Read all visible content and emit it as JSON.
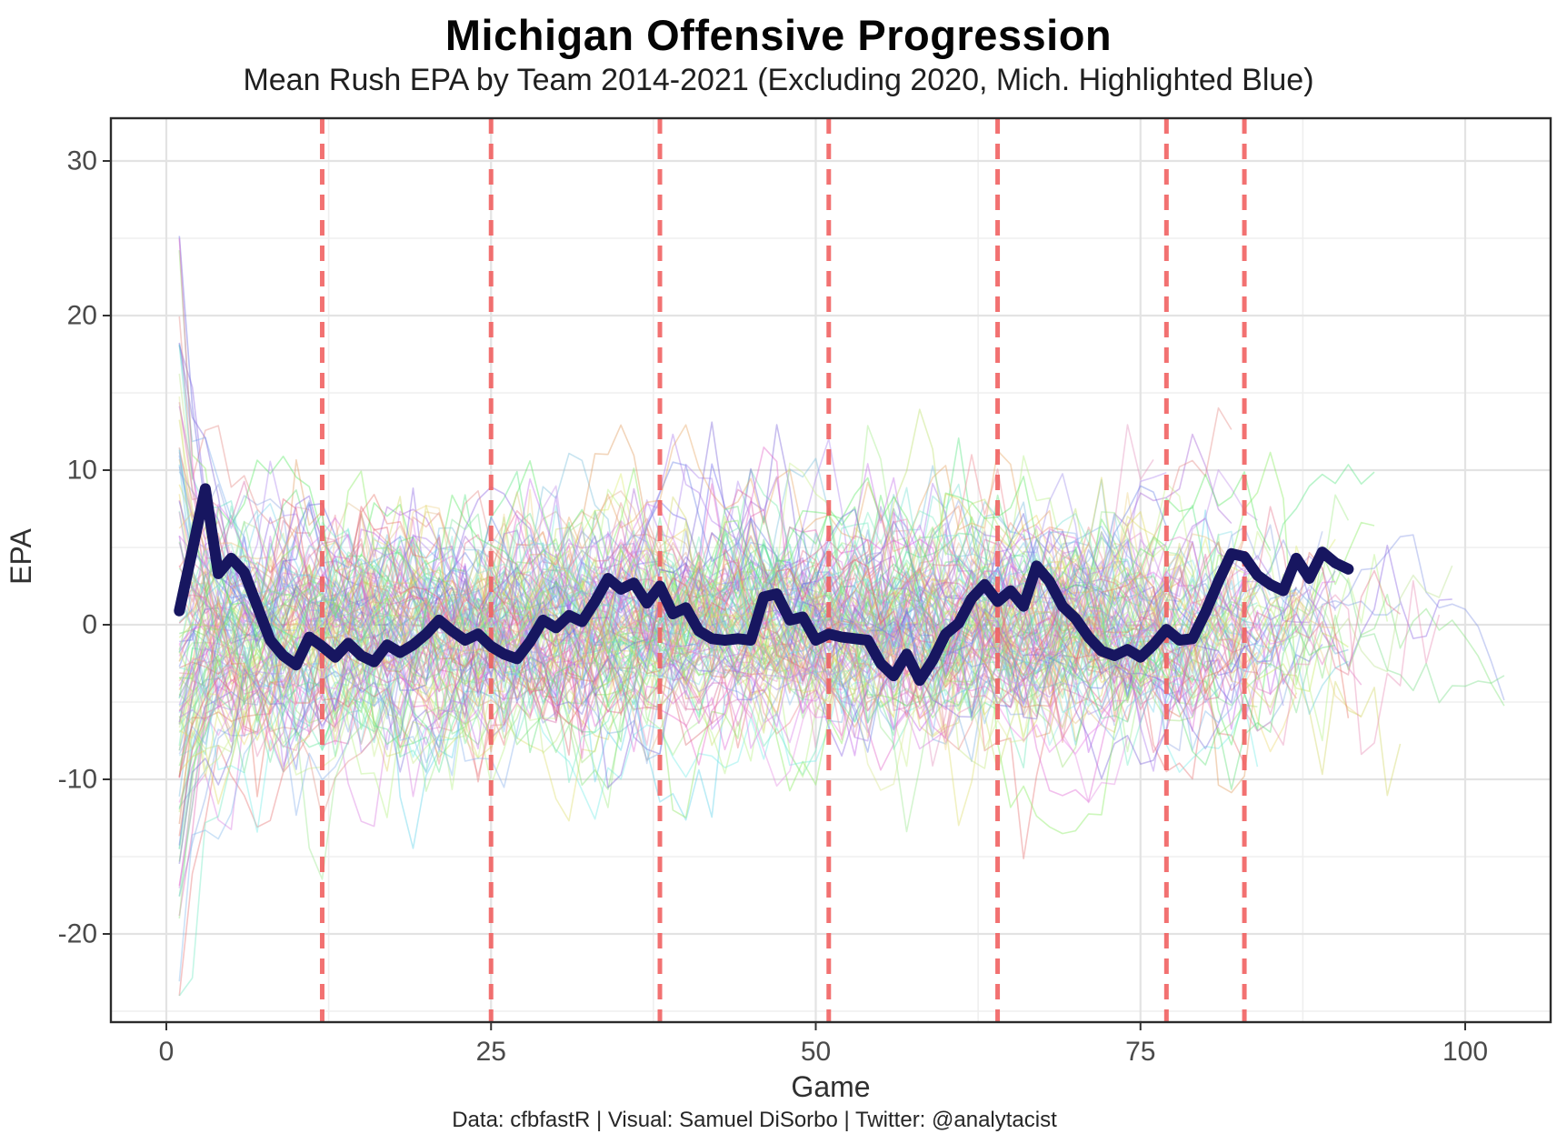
{
  "chart_data": {
    "type": "line",
    "title": "Michigan Offensive Progression",
    "subtitle": "Mean Rush EPA by Team 2014-2021 (Excluding 2020, Mich. Highlighted Blue)",
    "caption": "Data: cfbfastR | Visual: Samuel DiSorbo | Twitter: @analytacist",
    "xlabel": "Game",
    "ylabel": "EPA",
    "x_ticks": [
      0,
      25,
      50,
      75,
      100
    ],
    "y_ticks": [
      30,
      20,
      10,
      0,
      -10,
      -20
    ],
    "x_minor_gridlines": [
      12.5,
      37.5,
      62.5,
      87.5
    ],
    "y_minor_gridlines": [
      25,
      15,
      5,
      -5,
      -15,
      -25
    ],
    "xlim": [
      -4.2,
      106.5
    ],
    "ylim": [
      -25.9,
      33.1
    ],
    "grid": {
      "major": true,
      "minor": true
    },
    "legend_position": "none",
    "season_boundary_games": [
      12,
      25,
      38,
      51,
      64,
      77,
      83
    ],
    "highlight_team": "Michigan",
    "michigan_series": {
      "name": "Michigan",
      "x_start_game": 1,
      "mean_rush_epa_by_game": [
        0.9,
        4.8,
        8.8,
        3.3,
        4.3,
        3.4,
        1.2,
        -1.0,
        -2.0,
        -2.6,
        -0.8,
        -1.4,
        -2.1,
        -1.2,
        -2.0,
        -2.4,
        -1.3,
        -1.8,
        -1.3,
        -0.6,
        0.3,
        -0.4,
        -1.0,
        -0.6,
        -1.4,
        -1.9,
        -2.2,
        -1.1,
        0.3,
        -0.2,
        0.6,
        0.2,
        1.5,
        3.0,
        2.3,
        2.7,
        1.4,
        2.5,
        0.7,
        1.1,
        -0.4,
        -0.9,
        -1.0,
        -0.9,
        -1.0,
        1.8,
        2.0,
        0.3,
        0.5,
        -1.0,
        -0.6,
        -0.8,
        -0.9,
        -1.0,
        -2.5,
        -3.3,
        -1.9,
        -3.6,
        -2.3,
        -0.6,
        0.1,
        1.7,
        2.6,
        1.5,
        2.2,
        1.2,
        3.8,
        2.8,
        1.2,
        0.4,
        -0.8,
        -1.7,
        -2.0,
        -1.6,
        -2.1,
        -1.3,
        -0.3,
        -1.0,
        -0.9,
        0.8,
        2.8,
        4.6,
        4.4,
        3.2,
        2.6,
        2.2,
        4.3,
        3.0,
        4.7,
        4.0,
        3.6
      ]
    },
    "background_teams": {
      "description": "other FBS team lines 2014-2021 (excl. 2020), de-emphasized pastel colors",
      "count": 126,
      "seed": 11,
      "start_spread_epa": [
        -24,
        31
      ],
      "settled_band_epa": [
        -10,
        12
      ],
      "line_length_games": [
        72,
        103
      ],
      "opacity": 0.42
    },
    "colors": {
      "michigan_line": "#171660",
      "season_boundary_line": "#f16262",
      "grid_major": "#e3e3e3",
      "grid_minor": "#efefef",
      "panel_border": "#2b2b2b",
      "tick_text": "#4a4a4a",
      "background": "#ffffff"
    }
  }
}
